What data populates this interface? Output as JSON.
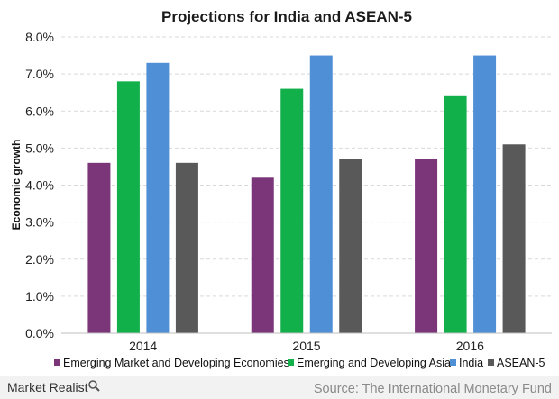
{
  "chart_data": {
    "type": "bar",
    "title": "Projections for India and ASEAN-5",
    "ylabel": "Economic growth",
    "xlabel": "",
    "categories": [
      "2014",
      "2015",
      "2016"
    ],
    "ylim": [
      0,
      8
    ],
    "ytick_step": 1,
    "ytick_format": "percent_1dp",
    "grid": "horizontal dashed",
    "legend_position": "bottom",
    "series": [
      {
        "name": "Emerging Market and Developing Economies",
        "color": "#7b3579",
        "values": [
          4.6,
          4.2,
          4.7
        ]
      },
      {
        "name": "Emerging and Developing Asia",
        "color": "#12b04b",
        "values": [
          6.8,
          6.6,
          6.4
        ]
      },
      {
        "name": "India",
        "color": "#4f8fd6",
        "values": [
          7.3,
          7.5,
          7.5
        ]
      },
      {
        "name": "ASEAN-5",
        "color": "#595959",
        "values": [
          4.6,
          4.7,
          5.1
        ]
      }
    ]
  },
  "footer": {
    "brand": "Market Realist",
    "brand_icon": "magnifier-icon",
    "source": "Source: The International Monetary Fund"
  }
}
